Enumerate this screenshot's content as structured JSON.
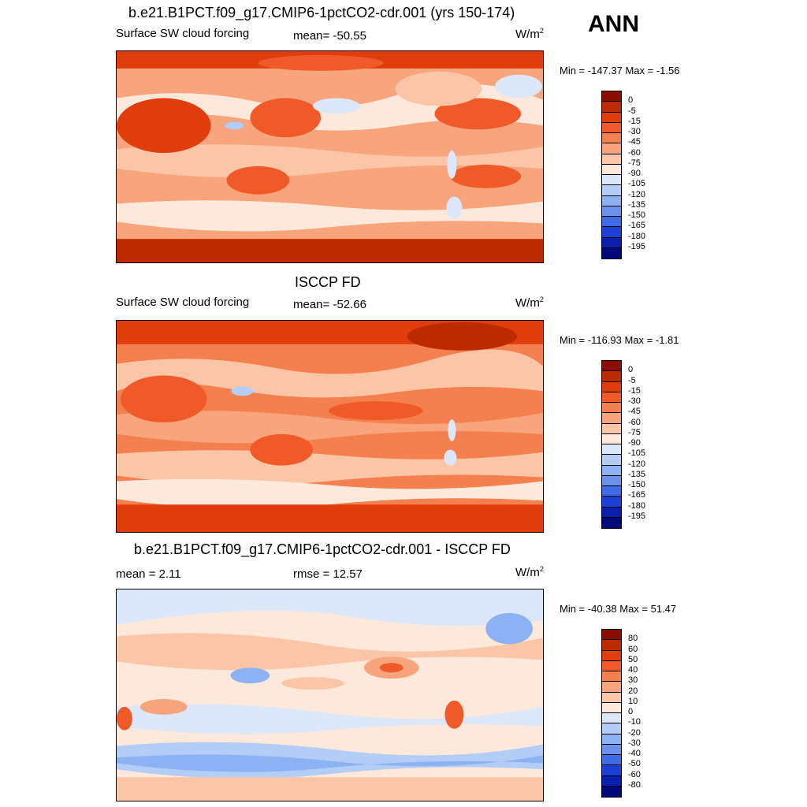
{
  "season": "ANN",
  "panels": [
    {
      "title": "b.e21.B1PCT.f09_g17.CMIP6-1pctCO2-cdr.001 (yrs 150-174)",
      "left_text": "Surface SW cloud forcing",
      "center_text": "mean= -50.55",
      "units": "W/m",
      "units_sup": "2",
      "minmax": "Min = -147.37 Max =  -1.56",
      "colorbar": {
        "labels": [
          "0",
          "-5",
          "-15",
          "-30",
          "-45",
          "-60",
          "-75",
          "-90",
          "-105",
          "-120",
          "-135",
          "-150",
          "-165",
          "-180",
          "-195"
        ],
        "colors": [
          "#8a0d00",
          "#bb2a00",
          "#e03c0c",
          "#f05a28",
          "#f5804f",
          "#f8a47d",
          "#fbc6a8",
          "#fde8dc",
          "#dce8fa",
          "#b3cdf7",
          "#8cb2f3",
          "#6b93ee",
          "#3f6ce6",
          "#1d3fd6",
          "#0a1fb0",
          "#020a7a"
        ]
      }
    },
    {
      "title": "ISCCP FD",
      "left_text": "Surface SW cloud forcing",
      "center_text": "mean= -52.66",
      "units": "W/m",
      "units_sup": "2",
      "minmax": "Min = -116.93 Max =  -1.81",
      "colorbar": {
        "labels": [
          "0",
          "-5",
          "-15",
          "-30",
          "-45",
          "-60",
          "-75",
          "-90",
          "-105",
          "-120",
          "-135",
          "-150",
          "-165",
          "-180",
          "-195"
        ],
        "colors": [
          "#8a0d00",
          "#bb2a00",
          "#e03c0c",
          "#f05a28",
          "#f5804f",
          "#f8a47d",
          "#fbc6a8",
          "#fde8dc",
          "#dce8fa",
          "#b3cdf7",
          "#8cb2f3",
          "#6b93ee",
          "#3f6ce6",
          "#1d3fd6",
          "#0a1fb0",
          "#020a7a"
        ]
      }
    },
    {
      "title": "b.e21.B1PCT.f09_g17.CMIP6-1pctCO2-cdr.001 - ISCCP FD",
      "left_text": "mean =   2.11",
      "center_text": "rmse =  12.57",
      "units": "W/m",
      "units_sup": "2",
      "minmax": "Min = -40.38 Max =  51.47",
      "colorbar": {
        "labels": [
          "80",
          "60",
          "50",
          "40",
          "30",
          "20",
          "10",
          "0",
          "-10",
          "-20",
          "-30",
          "-40",
          "-50",
          "-60",
          "-80"
        ],
        "colors": [
          "#8a0d00",
          "#bb2a00",
          "#e03c0c",
          "#f05a28",
          "#f5804f",
          "#f8a47d",
          "#fbc6a8",
          "#fde8dc",
          "#dce8fa",
          "#b3cdf7",
          "#8cb2f3",
          "#6b93ee",
          "#3f6ce6",
          "#1d3fd6",
          "#0a1fb0",
          "#020a7a"
        ]
      }
    }
  ]
}
